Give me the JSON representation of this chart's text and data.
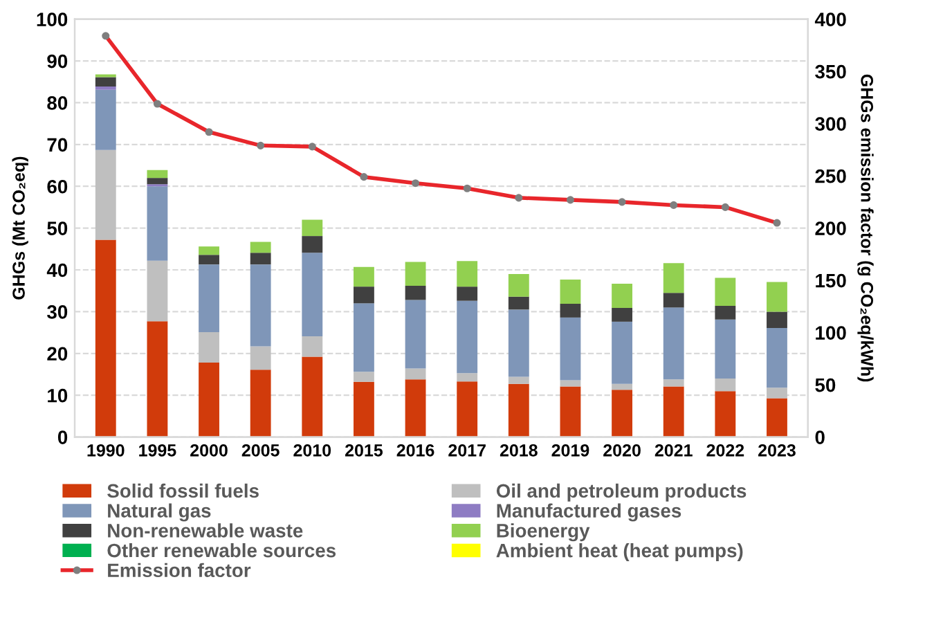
{
  "chart_data": {
    "type": "bar",
    "stacked": true,
    "ylabel": "GHGs (Mt CO₂eq)",
    "y2label": "GHGs emission factor (g CO₂eq/kWh)",
    "categories": [
      "1990",
      "1995",
      "2000",
      "2005",
      "2010",
      "2015",
      "2016",
      "2017",
      "2018",
      "2019",
      "2020",
      "2021",
      "2022",
      "2023"
    ],
    "series": [
      {
        "name": "Solid fossil fuels",
        "color": "#d13b0b",
        "values": [
          47.2,
          27.7,
          17.8,
          16.1,
          19.2,
          13.2,
          13.8,
          13.3,
          12.7,
          12.1,
          11.3,
          12.1,
          11.0,
          9.3
        ]
      },
      {
        "name": "Oil and petroleum products",
        "color": "#bfbfbf",
        "values": [
          21.5,
          14.5,
          7.3,
          5.6,
          4.9,
          2.4,
          2.6,
          2.0,
          1.7,
          1.5,
          1.4,
          1.7,
          3.0,
          2.5
        ]
      },
      {
        "name": "Natural gas",
        "color": "#7f96b8",
        "values": [
          14.4,
          17.8,
          16.2,
          19.6,
          20.0,
          16.4,
          16.4,
          17.3,
          16.1,
          15.0,
          14.9,
          17.2,
          14.1,
          14.3
        ]
      },
      {
        "name": "Manufactured gases",
        "color": "#8e7cc3",
        "values": [
          0.8,
          0.5,
          0,
          0,
          0,
          0,
          0,
          0,
          0,
          0,
          0,
          0,
          0,
          0
        ]
      },
      {
        "name": "Non-renewable waste",
        "color": "#404040",
        "values": [
          2.2,
          1.5,
          2.3,
          2.8,
          4.0,
          4.0,
          3.4,
          3.4,
          3.1,
          3.3,
          3.3,
          3.5,
          3.3,
          3.9
        ]
      },
      {
        "name": "Bioenergy",
        "color": "#92d050",
        "values": [
          0.7,
          1.9,
          2.0,
          2.6,
          3.9,
          4.7,
          5.7,
          6.1,
          5.4,
          5.8,
          5.8,
          7.1,
          6.7,
          7.1
        ]
      },
      {
        "name": "Other renewable sources",
        "color": "#00b050",
        "values": [
          0,
          0,
          0,
          0,
          0,
          0,
          0,
          0,
          0,
          0,
          0,
          0,
          0,
          0
        ]
      },
      {
        "name": "Ambient heat (heat pumps)",
        "color": "#ffff00",
        "values": [
          0,
          0,
          0,
          0,
          0,
          0,
          0,
          0,
          0,
          0,
          0,
          0,
          0,
          0
        ]
      },
      {
        "name": "Emission factor",
        "type": "line",
        "axis": "y2",
        "color": "#e8262b",
        "marker": "circle",
        "values": [
          384,
          319,
          292,
          279,
          278,
          249,
          243,
          238,
          229,
          227,
          225,
          222,
          220,
          205
        ]
      }
    ],
    "ylim": [
      0,
      100
    ],
    "yticks": [
      0,
      10,
      20,
      30,
      40,
      50,
      60,
      70,
      80,
      90,
      100
    ],
    "y2lim": [
      0,
      400
    ],
    "y2ticks": [
      0,
      50,
      100,
      150,
      200,
      250,
      300,
      350,
      400
    ],
    "grid": "y",
    "legend": "bottom"
  }
}
